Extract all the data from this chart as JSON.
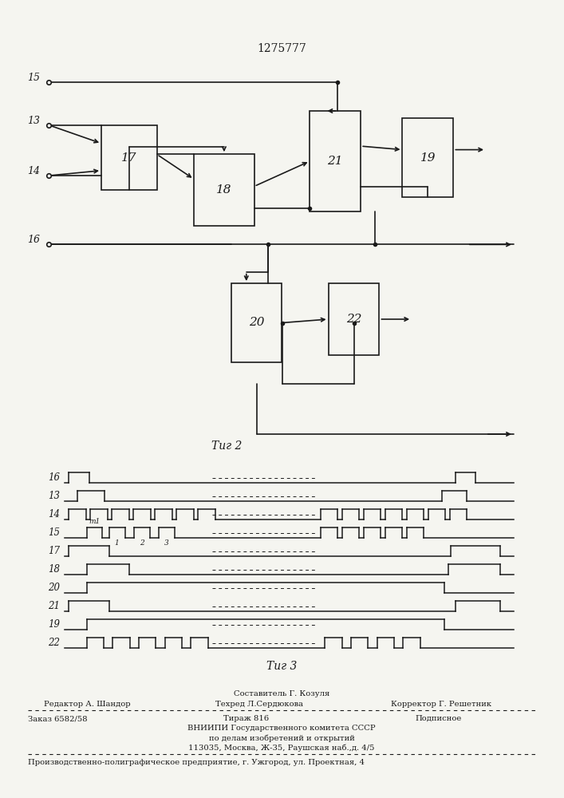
{
  "title": "1275777",
  "fig2_label": "Τиг 2",
  "fig3_label": "Τиг 3",
  "background_color": "#f5f5f0",
  "line_color": "#1a1a1a",
  "waveform_labels": [
    "16",
    "13",
    "14",
    "15",
    "17",
    "18",
    "20",
    "21",
    "19",
    "22"
  ]
}
